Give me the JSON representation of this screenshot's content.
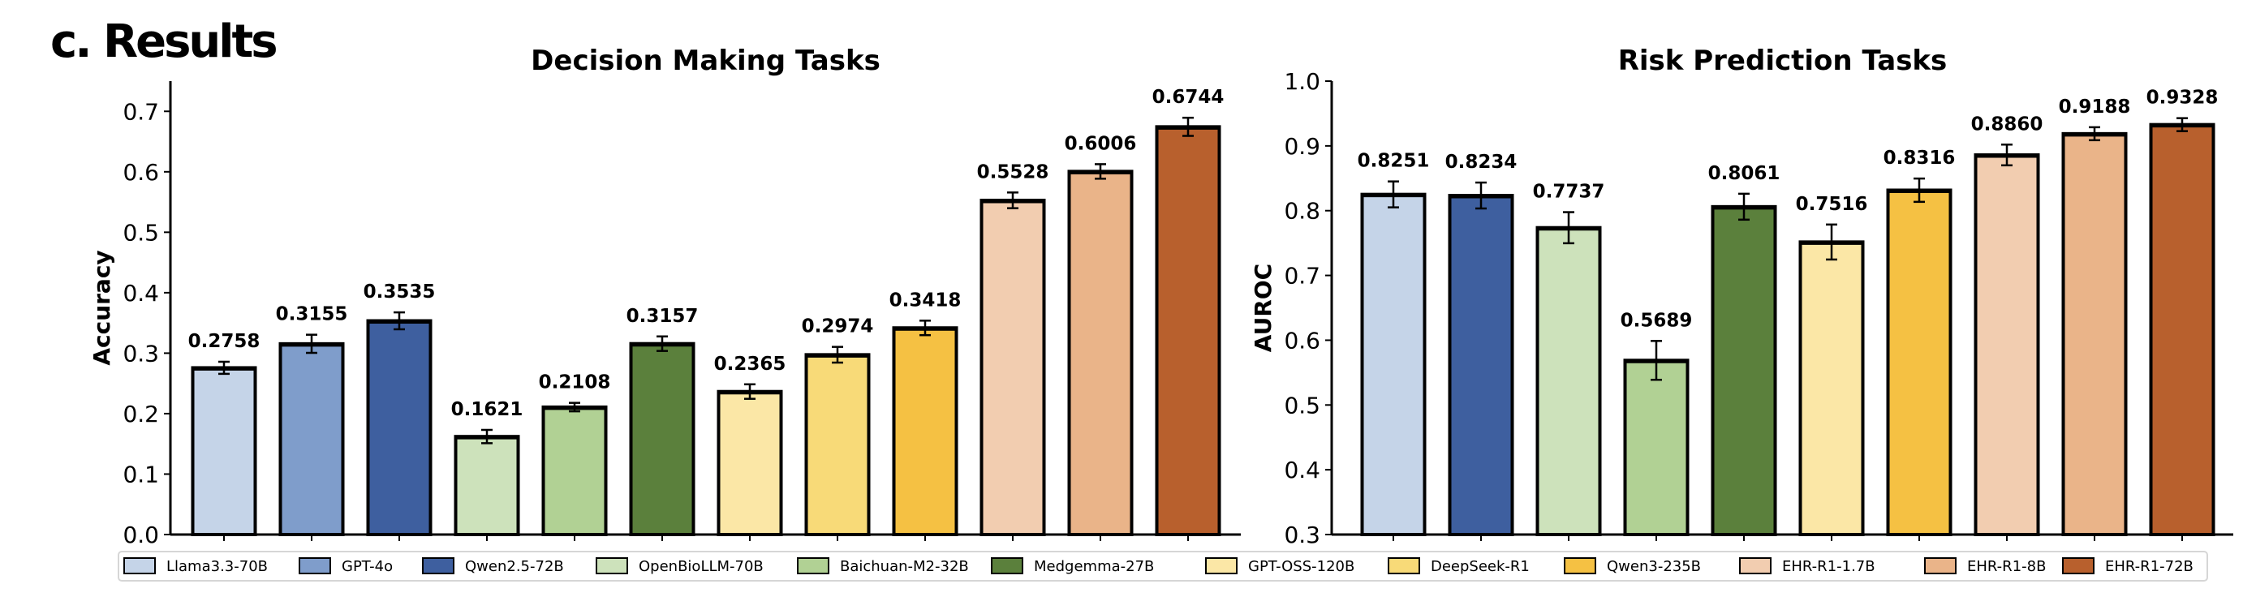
{
  "panel_label": "c. Results",
  "legend": {
    "placement": "bottom",
    "entries": [
      {
        "name": "Llama3.3-70B",
        "color": "#c5d4e8"
      },
      {
        "name": "GPT-4o",
        "color": "#7f9dcb"
      },
      {
        "name": "Qwen2.5-72B",
        "color": "#3e5f9f"
      },
      {
        "name": "OpenBioLLM-70B",
        "color": "#cde2bb"
      },
      {
        "name": "Baichuan-M2-32B",
        "color": "#b1d194"
      },
      {
        "name": "Medgemma-27B",
        "color": "#5b803c"
      },
      {
        "name": "GPT-OSS-120B",
        "color": "#fbe7a6"
      },
      {
        "name": "DeepSeek-R1",
        "color": "#f8da78"
      },
      {
        "name": "Qwen3-235B",
        "color": "#f5c143"
      },
      {
        "name": "EHR-R1-1.7B",
        "color": "#f2cdb0"
      },
      {
        "name": "EHR-R1-8B",
        "color": "#eab489"
      },
      {
        "name": "EHR-R1-72B",
        "color": "#b8602d"
      }
    ]
  },
  "chart_data": [
    {
      "type": "bar",
      "title": "Decision Making Tasks",
      "ylabel": "Accuracy",
      "xlabel": "",
      "ylim": [
        0,
        0.75
      ],
      "yticks": [
        "0.0",
        "0.1",
        "0.2",
        "0.3",
        "0.4",
        "0.5",
        "0.6",
        "0.7"
      ],
      "grid": false,
      "categories": [
        "Llama3.3-70B",
        "GPT-4o",
        "Qwen2.5-72B",
        "OpenBioLLM-70B",
        "Baichuan-M2-32B",
        "Medgemma-27B",
        "GPT-OSS-120B",
        "DeepSeek-R1",
        "Qwen3-235B",
        "EHR-R1-1.7B",
        "EHR-R1-8B",
        "EHR-R1-72B"
      ],
      "values": [
        0.2758,
        0.3155,
        0.3535,
        0.1621,
        0.2108,
        0.3157,
        0.2365,
        0.2974,
        0.3418,
        0.5528,
        0.6006,
        0.6744
      ],
      "labels": [
        "0.2758",
        "0.3155",
        "0.3535",
        "0.1621",
        "0.2108",
        "0.3157",
        "0.2365",
        "0.2974",
        "0.3418",
        "0.5528",
        "0.6006",
        "0.6744"
      ],
      "errors": [
        0.01,
        0.015,
        0.014,
        0.011,
        0.007,
        0.012,
        0.012,
        0.013,
        0.012,
        0.013,
        0.012,
        0.015
      ]
    },
    {
      "type": "bar",
      "title": "Risk Prediction Tasks",
      "ylabel": "AUROC",
      "xlabel": "",
      "ylim": [
        0.3,
        1.0
      ],
      "yticks": [
        "0.3",
        "0.4",
        "0.5",
        "0.6",
        "0.7",
        "0.8",
        "0.9",
        "1.0"
      ],
      "grid": false,
      "categories": [
        "Llama3.3-70B",
        "Qwen2.5-72B",
        "OpenBioLLM-70B",
        "Baichuan-M2-32B",
        "Medgemma-27B",
        "GPT-OSS-120B",
        "Qwen3-235B",
        "EHR-R1-1.7B",
        "EHR-R1-8B",
        "EHR-R1-72B"
      ],
      "values": [
        0.8251,
        0.8234,
        0.7737,
        0.5689,
        0.8061,
        0.7516,
        0.8316,
        0.886,
        0.9188,
        0.9328
      ],
      "labels": [
        "0.8251",
        "0.8234",
        "0.7737",
        "0.5689",
        "0.8061",
        "0.7516",
        "0.8316",
        "0.8860",
        "0.9188",
        "0.9328"
      ],
      "errors": [
        0.02,
        0.02,
        0.024,
        0.03,
        0.02,
        0.027,
        0.018,
        0.016,
        0.01,
        0.01
      ]
    }
  ]
}
